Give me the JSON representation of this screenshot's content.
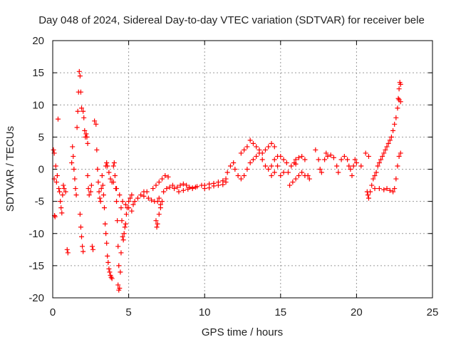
{
  "chart_data": {
    "type": "scatter",
    "title": "Day 048 of 2024, Sidereal Day-to-day VTEC variation (SDTVAR) for receiver bele",
    "xlabel": "GPS time / hours",
    "ylabel": "SDTVAR / TECUs",
    "xlim": [
      0,
      25
    ],
    "ylim": [
      -20,
      20
    ],
    "xticks": [
      0,
      5,
      10,
      15,
      20,
      25
    ],
    "yticks": [
      -20,
      -15,
      -10,
      -5,
      0,
      5,
      10,
      15,
      20
    ],
    "grid": true,
    "marker": "+",
    "series": [
      {
        "name": "SDTVAR",
        "color": "#ff0000",
        "points": [
          [
            0.05,
            3.0
          ],
          [
            0.1,
            2.5
          ],
          [
            0.1,
            -1.5
          ],
          [
            0.12,
            -7.2
          ],
          [
            0.15,
            -7.4
          ],
          [
            0.2,
            0.5
          ],
          [
            0.25,
            -2.0
          ],
          [
            0.3,
            -1.0
          ],
          [
            0.35,
            7.8
          ],
          [
            0.4,
            -3.0
          ],
          [
            0.45,
            -3.5
          ],
          [
            0.5,
            -5.0
          ],
          [
            0.55,
            -6.0
          ],
          [
            0.6,
            -6.8
          ],
          [
            0.65,
            -4.0
          ],
          [
            0.7,
            -2.5
          ],
          [
            0.75,
            -3.0
          ],
          [
            0.85,
            -3.5
          ],
          [
            0.95,
            -12.5
          ],
          [
            1.0,
            -13.0
          ],
          [
            1.25,
            1.0
          ],
          [
            1.3,
            3.5
          ],
          [
            1.35,
            2.0
          ],
          [
            1.4,
            0.0
          ],
          [
            1.45,
            -1.5
          ],
          [
            1.5,
            -3.0
          ],
          [
            1.55,
            -4.0
          ],
          [
            1.6,
            6.5
          ],
          [
            1.65,
            9.0
          ],
          [
            1.7,
            12.0
          ],
          [
            1.75,
            15.2
          ],
          [
            1.8,
            14.5
          ],
          [
            1.85,
            12.0
          ],
          [
            1.9,
            9.5
          ],
          [
            1.8,
            -7.0
          ],
          [
            1.85,
            -9.0
          ],
          [
            1.9,
            -10.5
          ],
          [
            1.95,
            -12.0
          ],
          [
            2.0,
            -12.8
          ],
          [
            2.0,
            9.0
          ],
          [
            2.05,
            8.0
          ],
          [
            2.1,
            6.0
          ],
          [
            2.15,
            5.0
          ],
          [
            2.2,
            5.5
          ],
          [
            2.25,
            5.0
          ],
          [
            2.3,
            4.0
          ],
          [
            2.3,
            -1.0
          ],
          [
            2.35,
            -3.0
          ],
          [
            2.4,
            -4.0
          ],
          [
            2.5,
            -3.5
          ],
          [
            2.55,
            -2.5
          ],
          [
            2.6,
            -12.0
          ],
          [
            2.65,
            -12.5
          ],
          [
            2.75,
            7.5
          ],
          [
            2.85,
            7.0
          ],
          [
            2.9,
            3.0
          ],
          [
            2.95,
            0.0
          ],
          [
            3.0,
            -2.0
          ],
          [
            3.05,
            -3.5
          ],
          [
            3.1,
            -4.5
          ],
          [
            3.15,
            -5.0
          ],
          [
            3.2,
            -3.0
          ],
          [
            3.25,
            -1.0
          ],
          [
            3.3,
            -2.5
          ],
          [
            3.35,
            -4.0
          ],
          [
            3.4,
            -6.0
          ],
          [
            3.45,
            -8.5
          ],
          [
            3.5,
            -10.0
          ],
          [
            3.55,
            -11.5
          ],
          [
            3.6,
            -13.5
          ],
          [
            3.65,
            -14.5
          ],
          [
            3.7,
            -15.5
          ],
          [
            3.75,
            -16.0
          ],
          [
            3.8,
            -16.5
          ],
          [
            3.85,
            -16.8
          ],
          [
            3.9,
            -17.0
          ],
          [
            3.5,
            0.5
          ],
          [
            3.55,
            1.0
          ],
          [
            3.6,
            0.5
          ],
          [
            3.7,
            -0.5
          ],
          [
            3.8,
            -1.5
          ],
          [
            3.9,
            -2.0
          ],
          [
            4.0,
            0.5
          ],
          [
            4.05,
            1.0
          ],
          [
            4.1,
            -1.0
          ],
          [
            4.15,
            -3.0
          ],
          [
            4.2,
            -5.0
          ],
          [
            4.25,
            -8.0
          ],
          [
            4.3,
            -12.0
          ],
          [
            4.35,
            -15.0
          ],
          [
            4.3,
            -18.0
          ],
          [
            4.35,
            -18.8
          ],
          [
            4.4,
            -18.5
          ],
          [
            4.45,
            -16.0
          ],
          [
            4.5,
            -13.0
          ],
          [
            4.5,
            -6.0
          ],
          [
            4.55,
            -8.0
          ],
          [
            4.6,
            -10.5
          ],
          [
            4.65,
            -11.0
          ],
          [
            4.7,
            -10.0
          ],
          [
            4.75,
            -9.0
          ],
          [
            4.8,
            -8.5
          ],
          [
            4.85,
            -7.0
          ],
          [
            4.9,
            -6.0
          ],
          [
            5.0,
            -5.0
          ],
          [
            5.1,
            -4.5
          ],
          [
            5.2,
            -4.0
          ],
          [
            4.0,
            -2.0
          ],
          [
            4.2,
            -3.0
          ],
          [
            4.4,
            -4.0
          ],
          [
            4.6,
            -5.0
          ],
          [
            4.8,
            -5.5
          ],
          [
            5.0,
            -6.0
          ],
          [
            5.2,
            -6.5
          ],
          [
            5.3,
            -5.5
          ],
          [
            5.4,
            -5.0
          ],
          [
            5.6,
            -4.5
          ],
          [
            5.8,
            -4.0
          ],
          [
            6.0,
            -3.5
          ],
          [
            6.2,
            -3.5
          ],
          [
            6.0,
            -4.2
          ],
          [
            6.3,
            -4.5
          ],
          [
            6.5,
            -4.8
          ],
          [
            6.7,
            -5.0
          ],
          [
            6.9,
            -5.0
          ],
          [
            7.0,
            -4.5
          ],
          [
            7.1,
            -5.5
          ],
          [
            6.8,
            -8.0
          ],
          [
            6.85,
            -9.0
          ],
          [
            6.9,
            -8.5
          ],
          [
            7.0,
            -7.0
          ],
          [
            7.1,
            -6.0
          ],
          [
            7.2,
            -5.0
          ],
          [
            6.6,
            -3.0
          ],
          [
            6.8,
            -2.5
          ],
          [
            7.0,
            -2.0
          ],
          [
            7.2,
            -1.5
          ],
          [
            7.4,
            -1.0
          ],
          [
            7.6,
            -1.2
          ],
          [
            7.3,
            -3.5
          ],
          [
            7.5,
            -3.0
          ],
          [
            7.7,
            -2.8
          ],
          [
            7.9,
            -2.5
          ],
          [
            8.0,
            -3.0
          ],
          [
            8.2,
            -2.8
          ],
          [
            8.4,
            -2.5
          ],
          [
            8.6,
            -2.3
          ],
          [
            8.8,
            -2.5
          ],
          [
            9.0,
            -2.8
          ],
          [
            9.2,
            -3.0
          ],
          [
            9.4,
            -2.8
          ],
          [
            8.3,
            -3.5
          ],
          [
            8.6,
            -3.3
          ],
          [
            8.9,
            -3.1
          ],
          [
            9.2,
            -2.9
          ],
          [
            9.5,
            -2.7
          ],
          [
            9.8,
            -2.5
          ],
          [
            10.0,
            -2.5
          ],
          [
            10.3,
            -2.3
          ],
          [
            10.6,
            -2.2
          ],
          [
            10.9,
            -2.0
          ],
          [
            11.2,
            -1.8
          ],
          [
            11.4,
            -1.5
          ],
          [
            10.0,
            -3.0
          ],
          [
            10.3,
            -2.9
          ],
          [
            10.6,
            -2.6
          ],
          [
            10.9,
            -2.5
          ],
          [
            11.2,
            -2.4
          ],
          [
            11.4,
            -2.0
          ],
          [
            11.5,
            -0.5
          ],
          [
            11.7,
            0.5
          ],
          [
            11.9,
            1.0
          ],
          [
            12.0,
            0.0
          ],
          [
            12.2,
            -1.0
          ],
          [
            12.4,
            -1.5
          ],
          [
            12.4,
            2.5
          ],
          [
            12.6,
            3.0
          ],
          [
            12.8,
            3.5
          ],
          [
            13.0,
            4.5
          ],
          [
            13.2,
            4.0
          ],
          [
            13.4,
            3.5
          ],
          [
            13.6,
            3.0
          ],
          [
            13.8,
            2.5
          ],
          [
            14.0,
            3.0
          ],
          [
            14.2,
            3.5
          ],
          [
            14.4,
            4.0
          ],
          [
            14.6,
            3.5
          ],
          [
            12.6,
            -1.0
          ],
          [
            12.8,
            0.0
          ],
          [
            13.0,
            1.0
          ],
          [
            13.2,
            1.5
          ],
          [
            13.4,
            2.0
          ],
          [
            13.6,
            2.5
          ],
          [
            13.8,
            1.5
          ],
          [
            14.0,
            0.5
          ],
          [
            14.2,
            0.0
          ],
          [
            14.4,
            0.5
          ],
          [
            14.6,
            1.5
          ],
          [
            14.8,
            2.0
          ],
          [
            14.4,
            -1.0
          ],
          [
            14.6,
            -0.5
          ],
          [
            14.8,
            0.5
          ],
          [
            15.0,
            2.0
          ],
          [
            15.2,
            1.5
          ],
          [
            15.4,
            1.0
          ],
          [
            15.0,
            -1.0
          ],
          [
            15.2,
            -0.5
          ],
          [
            15.5,
            -0.5
          ],
          [
            15.7,
            0.5
          ],
          [
            15.9,
            1.0
          ],
          [
            16.0,
            0.8
          ],
          [
            15.6,
            -2.5
          ],
          [
            15.8,
            -2.0
          ],
          [
            16.0,
            -1.5
          ],
          [
            16.2,
            -1.0
          ],
          [
            16.4,
            -0.5
          ],
          [
            16.6,
            -1.0
          ],
          [
            16.0,
            1.5
          ],
          [
            16.2,
            1.8
          ],
          [
            16.4,
            2.0
          ],
          [
            16.6,
            1.5
          ],
          [
            16.8,
            -1.0
          ],
          [
            16.9,
            -1.5
          ],
          [
            17.3,
            3.0
          ],
          [
            17.5,
            1.5
          ],
          [
            17.6,
            0.0
          ],
          [
            17.7,
            -0.5
          ],
          [
            17.9,
            1.5
          ],
          [
            18.0,
            2.5
          ],
          [
            18.1,
            2.0
          ],
          [
            18.3,
            2.2
          ],
          [
            18.5,
            1.8
          ],
          [
            18.7,
            0.5
          ],
          [
            18.8,
            -0.5
          ],
          [
            19.0,
            1.5
          ],
          [
            19.2,
            2.0
          ],
          [
            19.4,
            1.5
          ],
          [
            19.5,
            0.5
          ],
          [
            19.6,
            0.0
          ],
          [
            19.7,
            -1.0
          ],
          [
            19.8,
            0.5
          ],
          [
            19.9,
            1.5
          ],
          [
            20.0,
            1.0
          ],
          [
            20.3,
            0.5
          ],
          [
            20.6,
            2.5
          ],
          [
            20.8,
            2.0
          ],
          [
            20.7,
            -3.5
          ],
          [
            20.75,
            -4.0
          ],
          [
            20.8,
            -4.5
          ],
          [
            20.9,
            -3.5
          ],
          [
            21.0,
            -2.5
          ],
          [
            21.1,
            -1.5
          ],
          [
            21.2,
            -1.0
          ],
          [
            21.3,
            -0.5
          ],
          [
            21.4,
            0.5
          ],
          [
            21.5,
            1.0
          ],
          [
            21.6,
            1.5
          ],
          [
            21.7,
            2.0
          ],
          [
            21.8,
            2.5
          ],
          [
            21.9,
            3.0
          ],
          [
            22.0,
            3.5
          ],
          [
            22.1,
            4.0
          ],
          [
            22.2,
            4.5
          ],
          [
            22.3,
            5.0
          ],
          [
            22.4,
            6.0
          ],
          [
            22.5,
            7.0
          ],
          [
            22.6,
            8.0
          ],
          [
            22.7,
            9.5
          ],
          [
            22.75,
            11.0
          ],
          [
            22.8,
            12.5
          ],
          [
            22.85,
            13.5
          ],
          [
            22.9,
            13.2
          ],
          [
            22.9,
            10.5
          ],
          [
            22.8,
            10.8
          ],
          [
            21.2,
            -3.0
          ],
          [
            21.5,
            -3.0
          ],
          [
            21.8,
            -3.2
          ],
          [
            22.0,
            -3.0
          ],
          [
            22.2,
            -3.3
          ],
          [
            22.4,
            -3.5
          ],
          [
            22.5,
            -3.0
          ],
          [
            22.6,
            -1.5
          ],
          [
            22.7,
            0.5
          ],
          [
            22.8,
            2.0
          ],
          [
            22.9,
            2.5
          ]
        ]
      }
    ]
  }
}
